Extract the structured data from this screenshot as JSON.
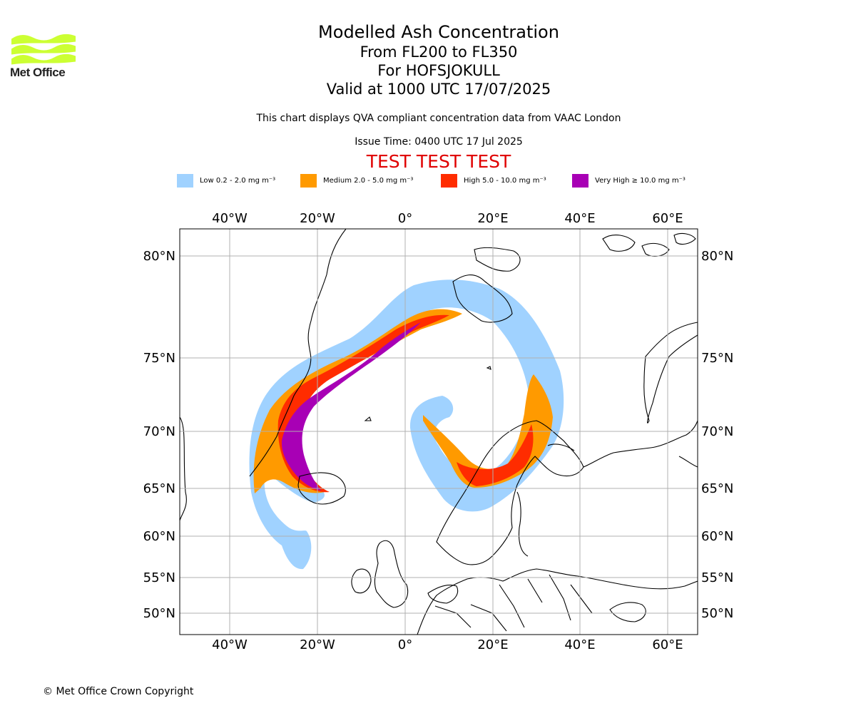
{
  "brand": {
    "name": "Met Office",
    "logo_color": "#ccff33"
  },
  "titles": {
    "main": "Modelled Ash Concentration",
    "levels": "From FL200 to FL350",
    "volcano": "For HOFSJOKULL",
    "valid": "Valid at 1000 UTC 17/07/2025"
  },
  "subtitle": "This chart displays QVA compliant concentration data from VAAC London",
  "issue_time": "Issue Time: 0400 UTC 17 Jul 2025",
  "test_banner": {
    "text": "TEST TEST TEST",
    "color": "#e00000"
  },
  "legend": [
    {
      "label": "Low 0.2 - 2.0 mg m⁻³",
      "color": "#a0d2ff"
    },
    {
      "label": "Medium 2.0 - 5.0 mg m⁻³",
      "color": "#ff9a00"
    },
    {
      "label": "High 5.0 - 10.0 mg m⁻³",
      "color": "#ff2c00"
    },
    {
      "label": "Very High ≥ 10.0 mg m⁻³",
      "color": "#a800b5"
    }
  ],
  "map": {
    "longitude_labels": [
      "40°W",
      "20°W",
      "0°",
      "20°E",
      "40°E",
      "60°E"
    ],
    "latitude_labels": [
      "80°N",
      "75°N",
      "70°N",
      "65°N",
      "60°N",
      "55°N",
      "50°N"
    ],
    "gridlines": true
  },
  "copyright": "© Met Office Crown Copyright"
}
